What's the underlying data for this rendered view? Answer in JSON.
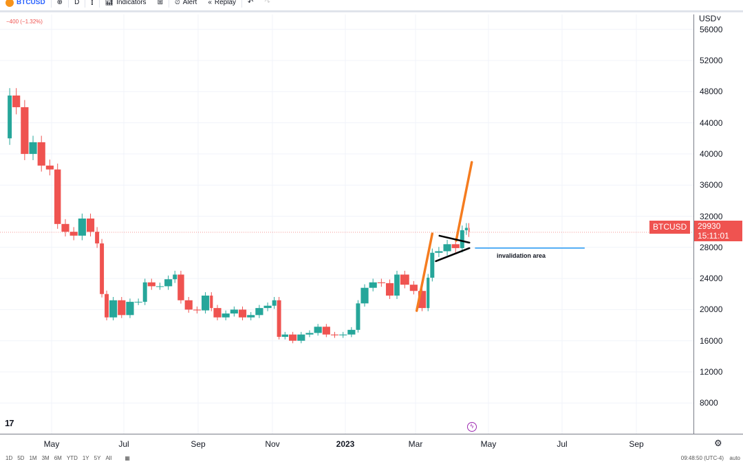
{
  "toolbar": {
    "symbol": "BTCUSD",
    "interval": "D",
    "indicators": "Indicators",
    "alert": "Alert",
    "replay": "Replay"
  },
  "change": "−400 (−1.32%)",
  "price_axis": {
    "currency": "USD",
    "ticks": [
      "56000",
      "52000",
      "48000",
      "44000",
      "40000",
      "36000",
      "32000",
      "28000",
      "24000",
      "20000",
      "16000",
      "12000",
      "8000"
    ]
  },
  "time_axis": [
    "May",
    "Jul",
    "Sep",
    "Nov",
    "2023",
    "Mar",
    "May",
    "Jul",
    "Sep"
  ],
  "last_price": {
    "symbol": "BTCUSD",
    "value": "29930",
    "countdown": "15:11:01",
    "color": "#ef5350"
  },
  "annotation": "invalidation area",
  "bottom": {
    "ranges": [
      "1D",
      "5D",
      "1M",
      "3M",
      "6M",
      "YTD",
      "1Y",
      "5Y",
      "All"
    ],
    "time": "09:48:50 (UTC-4)",
    "auto": "auto"
  },
  "chart_data": {
    "type": "candlestick",
    "ylim": [
      4000,
      58000
    ],
    "up_color": "#26a69a",
    "down_color": "#ef5350",
    "closes": [
      [
        "2022-03-25",
        42000
      ],
      [
        "2022-03-29",
        47500
      ],
      [
        "2022-04-05",
        46000
      ],
      [
        "2022-04-12",
        40000
      ],
      [
        "2022-04-19",
        41500
      ],
      [
        "2022-04-26",
        38500
      ],
      [
        "2022-05-03",
        38000
      ],
      [
        "2022-05-09",
        31000
      ],
      [
        "2022-05-16",
        30000
      ],
      [
        "2022-05-23",
        29500
      ],
      [
        "2022-05-30",
        31700
      ],
      [
        "2022-06-06",
        30000
      ],
      [
        "2022-06-10",
        28500
      ],
      [
        "2022-06-14",
        22000
      ],
      [
        "2022-06-18",
        19000
      ],
      [
        "2022-06-25",
        21200
      ],
      [
        "2022-07-02",
        19300
      ],
      [
        "2022-07-09",
        21000
      ],
      [
        "2022-07-16",
        21000
      ],
      [
        "2022-07-20",
        23500
      ],
      [
        "2022-07-27",
        23000
      ],
      [
        "2022-08-03",
        23000
      ],
      [
        "2022-08-10",
        23900
      ],
      [
        "2022-08-14",
        24500
      ],
      [
        "2022-08-20",
        21200
      ],
      [
        "2022-08-27",
        20000
      ],
      [
        "2022-09-03",
        19900
      ],
      [
        "2022-09-10",
        21800
      ],
      [
        "2022-09-13",
        20200
      ],
      [
        "2022-09-20",
        19000
      ],
      [
        "2022-09-27",
        19500
      ],
      [
        "2022-10-04",
        20000
      ],
      [
        "2022-10-11",
        19000
      ],
      [
        "2022-10-18",
        19300
      ],
      [
        "2022-10-25",
        20200
      ],
      [
        "2022-11-01",
        20500
      ],
      [
        "2022-11-05",
        21200
      ],
      [
        "2022-11-09",
        16500
      ],
      [
        "2022-11-15",
        16800
      ],
      [
        "2022-11-22",
        16000
      ],
      [
        "2022-11-29",
        16800
      ],
      [
        "2022-12-06",
        17000
      ],
      [
        "2022-12-13",
        17800
      ],
      [
        "2022-12-20",
        16800
      ],
      [
        "2022-12-27",
        16700
      ],
      [
        "2023-01-03",
        16800
      ],
      [
        "2023-01-10",
        17400
      ],
      [
        "2023-01-14",
        20800
      ],
      [
        "2023-01-21",
        22800
      ],
      [
        "2023-01-28",
        23500
      ],
      [
        "2023-02-04",
        23400
      ],
      [
        "2023-02-11",
        21800
      ],
      [
        "2023-02-16",
        24500
      ],
      [
        "2023-02-24",
        23200
      ],
      [
        "2023-03-03",
        22400
      ],
      [
        "2023-03-10",
        20200
      ],
      [
        "2023-03-13",
        24100
      ],
      [
        "2023-03-17",
        27300
      ],
      [
        "2023-03-24",
        27500
      ],
      [
        "2023-03-31",
        28400
      ],
      [
        "2023-04-07",
        27900
      ],
      [
        "2023-04-11",
        30200
      ],
      [
        "2023-04-14",
        30500
      ],
      [
        "2023-04-15",
        29930
      ]
    ],
    "drawings": [
      {
        "kind": "trendline",
        "color": "#f57c1f",
        "points": [
          [
            "2023-03-02",
            19860
          ],
          [
            "2023-03-15",
            29750
          ]
        ]
      },
      {
        "kind": "trendline",
        "color": "#f57c1f",
        "points": [
          [
            "2023-04-04",
            28870
          ],
          [
            "2023-04-17",
            38930
          ]
        ]
      },
      {
        "kind": "trendline",
        "color": "#000000",
        "points": [
          [
            "2023-03-21",
            29490
          ],
          [
            "2023-04-15",
            28600
          ]
        ]
      },
      {
        "kind": "trendline",
        "color": "#000000",
        "points": [
          [
            "2023-03-18",
            26220
          ],
          [
            "2023-04-15",
            27900
          ]
        ]
      },
      {
        "kind": "horizontal",
        "color": "#2196f3",
        "points": [
          [
            "2023-04-20",
            27900
          ],
          [
            "2023-07-20",
            27900
          ]
        ]
      }
    ]
  }
}
